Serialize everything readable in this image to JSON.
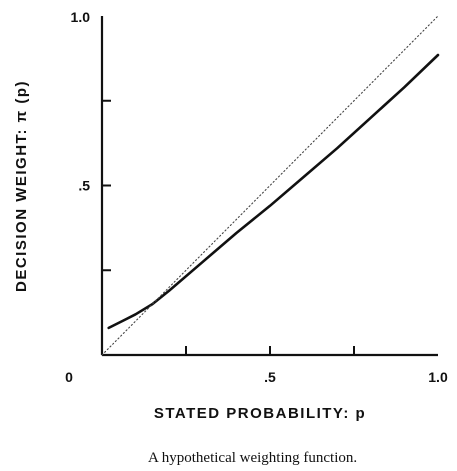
{
  "chart_data": {
    "type": "line",
    "xlabel": "STATED  PROBABILITY:  p",
    "ylabel": "DECISION  WEIGHT:  π (p)",
    "xlim": [
      0,
      1
    ],
    "ylim": [
      0,
      1
    ],
    "x_tick_labels": [
      {
        "value": 0,
        "label": "0"
      },
      {
        "value": 0.5,
        "label": ".5"
      },
      {
        "value": 1,
        "label": "1.0"
      }
    ],
    "y_tick_labels": [
      {
        "value": 0.5,
        "label": ".5"
      },
      {
        "value": 1,
        "label": "1.0"
      }
    ],
    "x_ticks": [
      0.25,
      0.5,
      0.75
    ],
    "y_ticks": [
      0.25,
      0.5,
      0.75
    ],
    "grid": false,
    "series": [
      {
        "style": "solid",
        "color": "#111111",
        "x": [
          0.02,
          0.06,
          0.1,
          0.15,
          0.2,
          0.3,
          0.4,
          0.5,
          0.6,
          0.7,
          0.8,
          0.9,
          1.0
        ],
        "y": [
          0.08,
          0.1,
          0.12,
          0.15,
          0.19,
          0.275,
          0.36,
          0.44,
          0.525,
          0.61,
          0.7,
          0.79,
          0.885
        ]
      },
      {
        "style": "dotted",
        "color": "#444444",
        "x": [
          0,
          1
        ],
        "y": [
          0,
          1
        ]
      }
    ]
  },
  "caption": "A hypothetical weighting function."
}
